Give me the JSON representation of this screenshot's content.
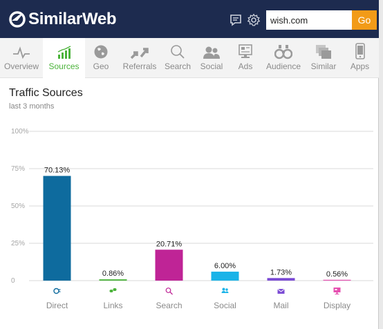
{
  "header": {
    "logo_text": "SimilarWeb",
    "search_value": "wish.com",
    "go_label": "Go",
    "icons": [
      "feedback-icon",
      "settings-gear-icon"
    ]
  },
  "tabs": [
    {
      "label": "Overview",
      "icon": "overview-pulse-icon",
      "active": false
    },
    {
      "label": "Sources",
      "icon": "sources-bars-icon",
      "active": true
    },
    {
      "label": "Geo",
      "icon": "globe-icon",
      "active": false
    },
    {
      "label": "Referrals",
      "icon": "referrals-arrows-icon",
      "active": false
    },
    {
      "label": "Search",
      "icon": "magnifier-icon",
      "active": false
    },
    {
      "label": "Social",
      "icon": "social-people-icon",
      "active": false
    },
    {
      "label": "Ads",
      "icon": "ads-icon",
      "active": false
    },
    {
      "label": "Audience",
      "icon": "binoculars-icon",
      "active": false
    },
    {
      "label": "Similar",
      "icon": "similar-icon",
      "active": false
    },
    {
      "label": "Apps",
      "icon": "phone-icon",
      "active": false
    }
  ],
  "section": {
    "title": "Traffic Sources",
    "subtitle": "last 3 months"
  },
  "chart_data": {
    "type": "bar",
    "title": "Traffic Sources",
    "categories": [
      "Direct",
      "Links",
      "Search",
      "Social",
      "Mail",
      "Display"
    ],
    "values": [
      70.13,
      0.86,
      20.71,
      6.0,
      1.73,
      0.56
    ],
    "value_labels": [
      "70.13%",
      "0.86%",
      "20.71%",
      "6.00%",
      "1.73%",
      "0.56%"
    ],
    "colors": [
      "#0e6b9e",
      "#4bb33a",
      "#bf2496",
      "#1ab3e8",
      "#7b4bd4",
      "#e64fb0"
    ],
    "category_icons": [
      "direct-icon",
      "links-icon",
      "search-icon",
      "social-icon",
      "mail-icon",
      "display-icon"
    ],
    "yticks": [
      "0",
      "25%",
      "50%",
      "75%",
      "100%"
    ],
    "ylim": [
      0,
      100
    ],
    "grid": true
  }
}
